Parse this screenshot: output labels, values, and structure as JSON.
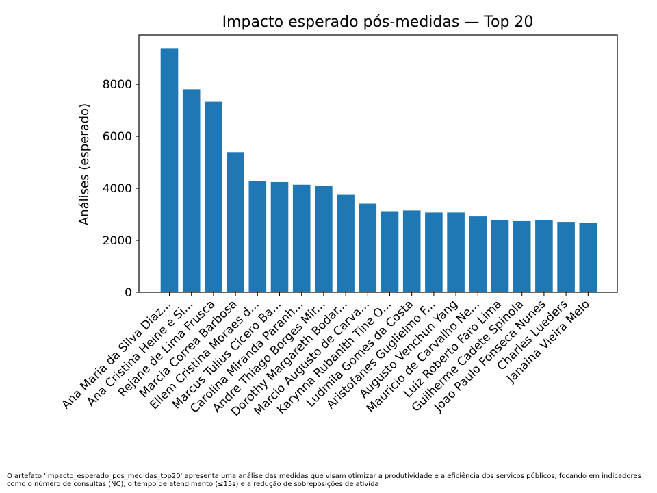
{
  "chart_data": {
    "type": "bar",
    "title": "Impacto esperado pós-medidas — Top 20",
    "xlabel": "",
    "ylabel": "Análises (esperado)",
    "ylim": [
      0,
      9900
    ],
    "yticks": [
      0,
      2000,
      4000,
      6000,
      8000
    ],
    "grid": false,
    "bar_color": "#1f77b4",
    "categories": [
      "Ana Maria da Silva Diaz...",
      "Ana Cristina Heine e Si...",
      "Rejane de Lima Frusca",
      "Marcia Correa Barbosa",
      "Ellem Cristina Moraes d...",
      "Marcus Tulius Cicero Ba...",
      "Carolina Miranda Paranh...",
      "Andre Thiago Borges Mir...",
      "Dorothy Margareth Bodar...",
      "Marcio Augusto de Carva...",
      "Karynna Rubanith Tine O...",
      "Ludmila Gomes da Costa",
      "Aristofanes Guglielmo F...",
      "Augusto Venchun Yang",
      "Mauricio de Carvalho Ne...",
      "Luiz Roberto Faro Lima",
      "Guilherme Cadete Spinola",
      "Joao Paulo Fonseca Nunes",
      "Charles Lueders",
      "Janaina Vieira Melo"
    ],
    "values": [
      9390,
      7810,
      7330,
      5390,
      4270,
      4240,
      4140,
      4090,
      3750,
      3410,
      3120,
      3150,
      3070,
      3070,
      2920,
      2770,
      2740,
      2770,
      2710,
      2670
    ]
  },
  "caption": "O artefato 'impacto_esperado_pos_medidas_top20' apresenta uma análise das medidas que visam otimizar a produtividade e a eficiência dos serviços públicos, focando em indicadores como o número de consultas (NC), o tempo de atendimento (≤15s) e a redução de sobreposições de ativida"
}
